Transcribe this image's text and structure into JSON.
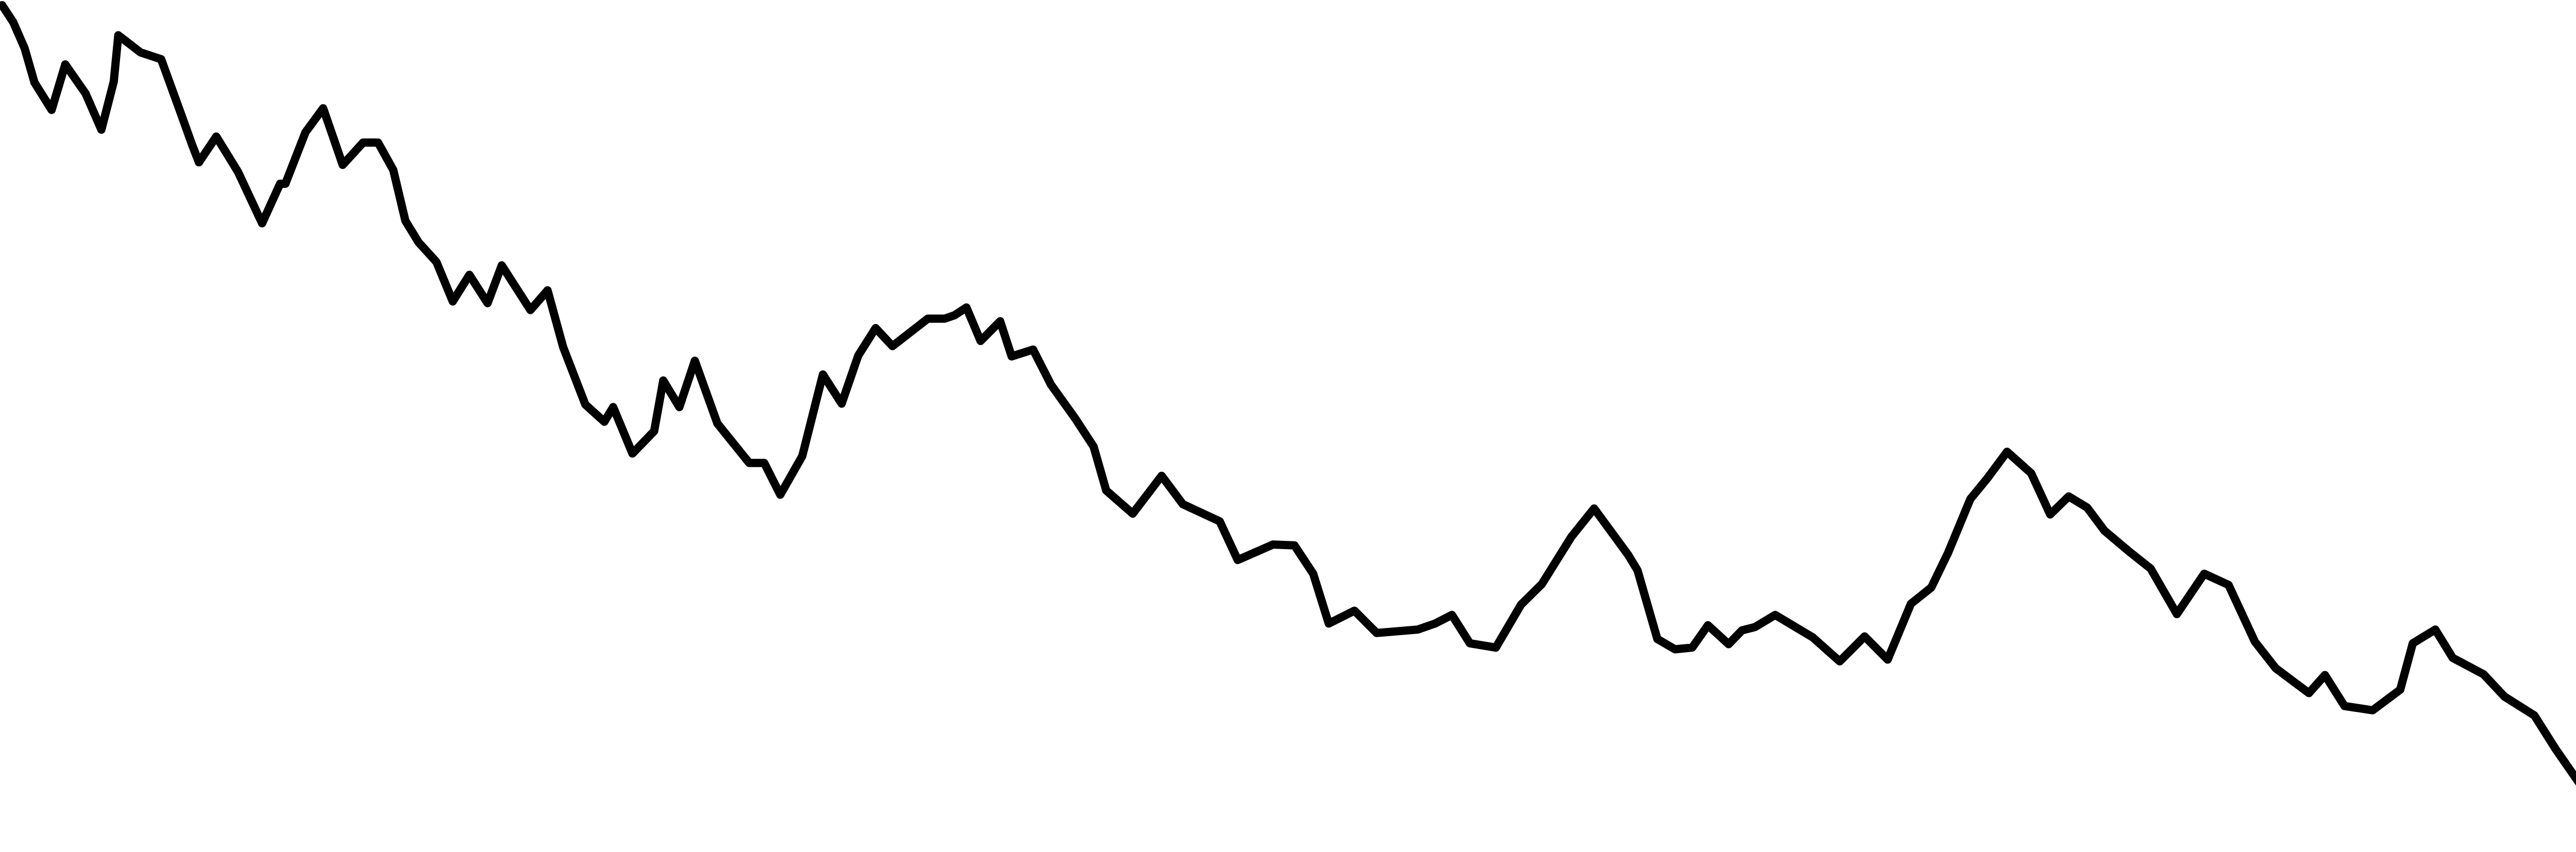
{
  "chart_data": {
    "type": "line",
    "title": "",
    "xlabel": "",
    "ylabel": "",
    "grid": false,
    "axes_visible": false,
    "legend": "none",
    "xlim": [
      0,
      100
    ],
    "ylim": [
      -97,
      1
    ],
    "series": [
      {
        "color": "#000000",
        "points": [
          [
            0.0,
            1.0
          ],
          [
            0.42,
            -1.0
          ],
          [
            0.84,
            -4.0
          ],
          [
            1.21,
            -8.0
          ],
          [
            1.85,
            -11.2
          ],
          [
            2.36,
            -5.9
          ],
          [
            3.12,
            -9.3
          ],
          [
            3.71,
            -13.5
          ],
          [
            4.17,
            -7.9
          ],
          [
            4.34,
            -2.5
          ],
          [
            5.17,
            -4.5
          ],
          [
            5.94,
            -5.3
          ],
          [
            6.71,
            -11.9
          ],
          [
            7.09,
            -15.2
          ],
          [
            7.35,
            -17.3
          ],
          [
            8.0,
            -14.3
          ],
          [
            8.81,
            -18.4
          ],
          [
            9.71,
            -24.4
          ],
          [
            10.38,
            -19.8
          ],
          [
            10.58,
            -19.8
          ],
          [
            11.33,
            -13.8
          ],
          [
            11.99,
            -11.0
          ],
          [
            12.72,
            -17.6
          ],
          [
            13.48,
            -15.0
          ],
          [
            14.04,
            -15.0
          ],
          [
            14.61,
            -18.2
          ],
          [
            15.06,
            -24.1
          ],
          [
            15.55,
            -26.6
          ],
          [
            16.22,
            -28.9
          ],
          [
            16.83,
            -33.5
          ],
          [
            17.45,
            -30.4
          ],
          [
            18.13,
            -33.7
          ],
          [
            18.66,
            -29.3
          ],
          [
            19.73,
            -34.5
          ],
          [
            20.37,
            -32.2
          ],
          [
            20.95,
            -38.8
          ],
          [
            21.78,
            -45.5
          ],
          [
            22.49,
            -47.5
          ],
          [
            22.82,
            -45.8
          ],
          [
            23.54,
            -51.2
          ],
          [
            24.35,
            -48.6
          ],
          [
            24.69,
            -42.7
          ],
          [
            25.29,
            -45.8
          ],
          [
            25.87,
            -40.4
          ],
          [
            26.71,
            -47.7
          ],
          [
            27.9,
            -52.3
          ],
          [
            28.46,
            -52.3
          ],
          [
            29.06,
            -56.0
          ],
          [
            29.88,
            -51.5
          ],
          [
            30.65,
            -42.0
          ],
          [
            31.35,
            -45.4
          ],
          [
            31.97,
            -39.8
          ],
          [
            32.62,
            -36.6
          ],
          [
            33.25,
            -38.7
          ],
          [
            34.57,
            -35.5
          ],
          [
            35.2,
            -35.5
          ],
          [
            35.57,
            -35.1
          ],
          [
            36.01,
            -34.2
          ],
          [
            36.54,
            -38.1
          ],
          [
            37.27,
            -35.8
          ],
          [
            37.7,
            -39.9
          ],
          [
            38.5,
            -39.1
          ],
          [
            39.17,
            -43.2
          ],
          [
            40.09,
            -47.2
          ],
          [
            40.76,
            -50.4
          ],
          [
            41.23,
            -55.5
          ],
          [
            42.22,
            -58.2
          ],
          [
            43.3,
            -53.8
          ],
          [
            44.09,
            -57.1
          ],
          [
            45.47,
            -59.1
          ],
          [
            46.14,
            -63.6
          ],
          [
            47.46,
            -61.8
          ],
          [
            48.26,
            -61.9
          ],
          [
            48.96,
            -65.2
          ],
          [
            49.54,
            -71.0
          ],
          [
            50.5,
            -69.5
          ],
          [
            51.33,
            -72.1
          ],
          [
            52.86,
            -71.7
          ],
          [
            53.51,
            -71.0
          ],
          [
            54.14,
            -70.0
          ],
          [
            54.81,
            -73.3
          ],
          [
            55.78,
            -73.8
          ],
          [
            56.72,
            -68.8
          ],
          [
            57.5,
            -66.4
          ],
          [
            58.6,
            -60.9
          ],
          [
            59.45,
            -57.6
          ],
          [
            60.72,
            -63.0
          ],
          [
            61.07,
            -64.8
          ],
          [
            61.81,
            -72.8
          ],
          [
            62.47,
            -74.0
          ],
          [
            63.11,
            -73.8
          ],
          [
            63.7,
            -71.2
          ],
          [
            64.47,
            -73.4
          ],
          [
            64.97,
            -71.8
          ],
          [
            65.46,
            -71.4
          ],
          [
            66.21,
            -70.0
          ],
          [
            67.61,
            -72.6
          ],
          [
            68.62,
            -75.4
          ],
          [
            69.55,
            -72.5
          ],
          [
            70.41,
            -75.2
          ],
          [
            71.28,
            -68.7
          ],
          [
            72.04,
            -66.8
          ],
          [
            72.66,
            -62.8
          ],
          [
            73.5,
            -56.5
          ],
          [
            74.13,
            -54.1
          ],
          [
            74.87,
            -51.0
          ],
          [
            75.77,
            -53.5
          ],
          [
            76.48,
            -58.3
          ],
          [
            77.17,
            -56.2
          ],
          [
            77.86,
            -57.5
          ],
          [
            78.51,
            -60.2
          ],
          [
            79.42,
            -62.6
          ],
          [
            80.23,
            -64.6
          ],
          [
            81.21,
            -69.9
          ],
          [
            82.23,
            -65.2
          ],
          [
            83.14,
            -66.5
          ],
          [
            84.12,
            -73.1
          ],
          [
            84.9,
            -76.2
          ],
          [
            86.14,
            -79.1
          ],
          [
            86.74,
            -77.0
          ],
          [
            87.47,
            -80.6
          ],
          [
            88.52,
            -81.1
          ],
          [
            89.55,
            -78.7
          ],
          [
            90.02,
            -73.3
          ],
          [
            90.86,
            -71.7
          ],
          [
            91.51,
            -75.0
          ],
          [
            92.66,
            -76.9
          ],
          [
            93.44,
            -79.5
          ],
          [
            94.56,
            -81.7
          ],
          [
            95.35,
            -85.6
          ],
          [
            96.24,
            -89.6
          ],
          [
            97.2,
            -91.1
          ],
          [
            98.12,
            -94.3
          ],
          [
            98.77,
            -94.3
          ],
          [
            99.54,
            -96.1
          ],
          [
            100.0,
            -97.0
          ]
        ]
      }
    ]
  }
}
